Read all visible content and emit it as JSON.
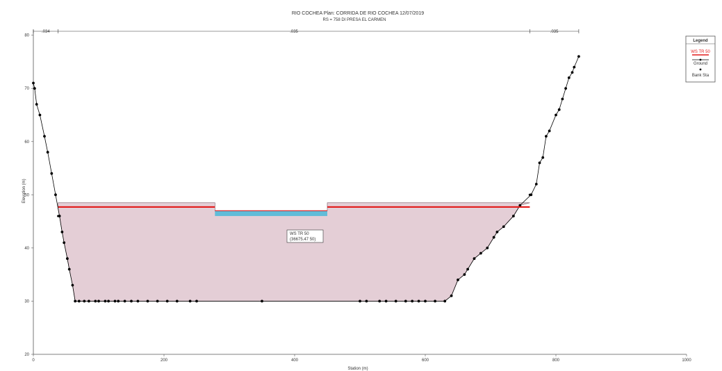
{
  "caption": "",
  "chart_data": {
    "type": "line",
    "title": "RIO COCHEA     Plan: CORRIDA DE RIO COCHEA   12/07/2019",
    "subtitle": "RS = 758     DI PRESA EL CARMEN",
    "xlabel": "Station (m)",
    "ylabel": "Elevation (m)",
    "xlim": [
      0,
      1000
    ],
    "ylim": [
      20,
      81
    ],
    "xticks": [
      "0",
      "200",
      "400",
      "600",
      "800",
      "1000"
    ],
    "yticks": [
      "20",
      "30",
      "40",
      "50",
      "60",
      "70",
      "80"
    ],
    "grid": false,
    "legend_position": "top-right",
    "legend": {
      "title": "Legend",
      "entries": [
        "WS TR 50",
        "Ground",
        "Bank Sta"
      ]
    },
    "colors": {
      "ws_line": "#e21b1b",
      "ground": "#000000",
      "water_fill": "#cda6b5",
      "highlight": "#4ab8d8"
    },
    "manning_labels": [
      ".034",
      ".035",
      ".035"
    ],
    "annotation_lines": [
      "WS TR 50",
      "(36675.47 50)"
    ],
    "series": [
      {
        "name": "Ground",
        "x": [
          0,
          2,
          5,
          10,
          17,
          22,
          28,
          34,
          40,
          44,
          47,
          52,
          55,
          60,
          64,
          70,
          78,
          85,
          95,
          100,
          110,
          115,
          125,
          130,
          140,
          150,
          160,
          175,
          190,
          205,
          220,
          240,
          250,
          350,
          500,
          510,
          530,
          540,
          555,
          570,
          580,
          590,
          600,
          615,
          630,
          640,
          650,
          660,
          665,
          675,
          685,
          695,
          705,
          710,
          720,
          735,
          745,
          762,
          770,
          775,
          780,
          785,
          790,
          800,
          805,
          810,
          815,
          820,
          825,
          828,
          835
        ],
        "y": [
          71,
          70,
          67,
          65,
          61,
          58,
          54,
          50,
          46,
          43,
          41,
          38,
          36,
          33,
          30,
          30,
          30,
          30,
          30,
          30,
          30,
          30,
          30,
          30,
          30,
          30,
          30,
          30,
          30,
          30,
          30,
          30,
          30,
          30,
          30,
          30,
          30,
          30,
          30,
          30,
          30,
          30,
          30,
          30,
          30,
          31,
          34,
          35,
          36,
          38,
          39,
          40,
          42,
          43,
          44,
          46,
          48,
          50,
          52,
          56,
          57,
          61,
          62,
          65,
          66,
          68,
          70,
          72,
          73,
          74,
          76
        ]
      },
      {
        "name": "WS TR 50",
        "x": [
          38,
          760
        ],
        "y": [
          47.7,
          47.7
        ]
      },
      {
        "name": "Bank Sta",
        "x": [
          38,
          760
        ],
        "y": [
          46,
          50
        ]
      }
    ],
    "bank_area_top_left": 48.5,
    "channel_area_top": 47,
    "channel_area_x": [
      278,
      450
    ]
  }
}
